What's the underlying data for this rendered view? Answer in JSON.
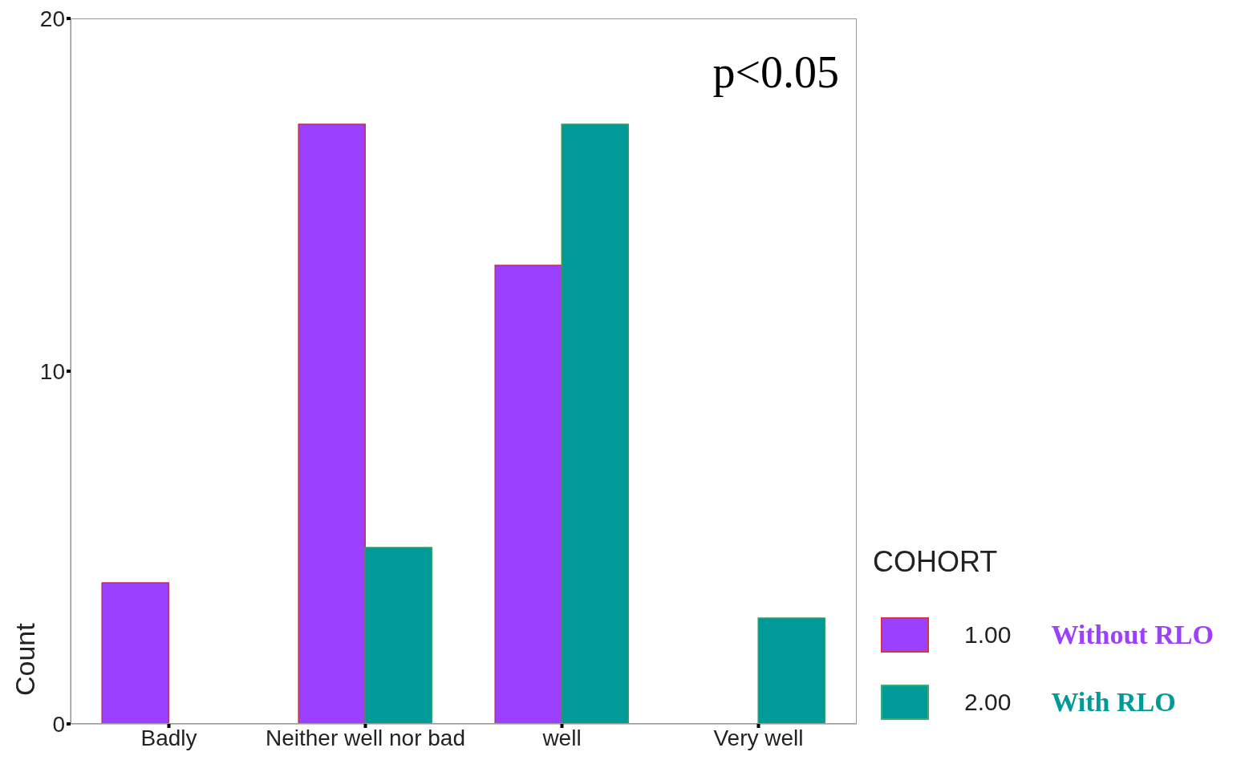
{
  "chart_data": {
    "type": "bar",
    "categories": [
      "Badly",
      "Neither well nor bad",
      "well",
      "Very well"
    ],
    "series": [
      {
        "name": "1.00",
        "color": "#9b40ff",
        "values": [
          4,
          17,
          13,
          0
        ]
      },
      {
        "name": "2.00",
        "color": "#009a98",
        "values": [
          0,
          5,
          17,
          3
        ]
      }
    ],
    "ylabel": "Count",
    "legend_title": "COHORT",
    "legend": "right",
    "ylim": [
      0,
      20
    ],
    "yticks": [
      0,
      10,
      20
    ],
    "grid": false,
    "annotations": [
      "p<0.05",
      "Without RLO",
      "With RLO"
    ]
  }
}
